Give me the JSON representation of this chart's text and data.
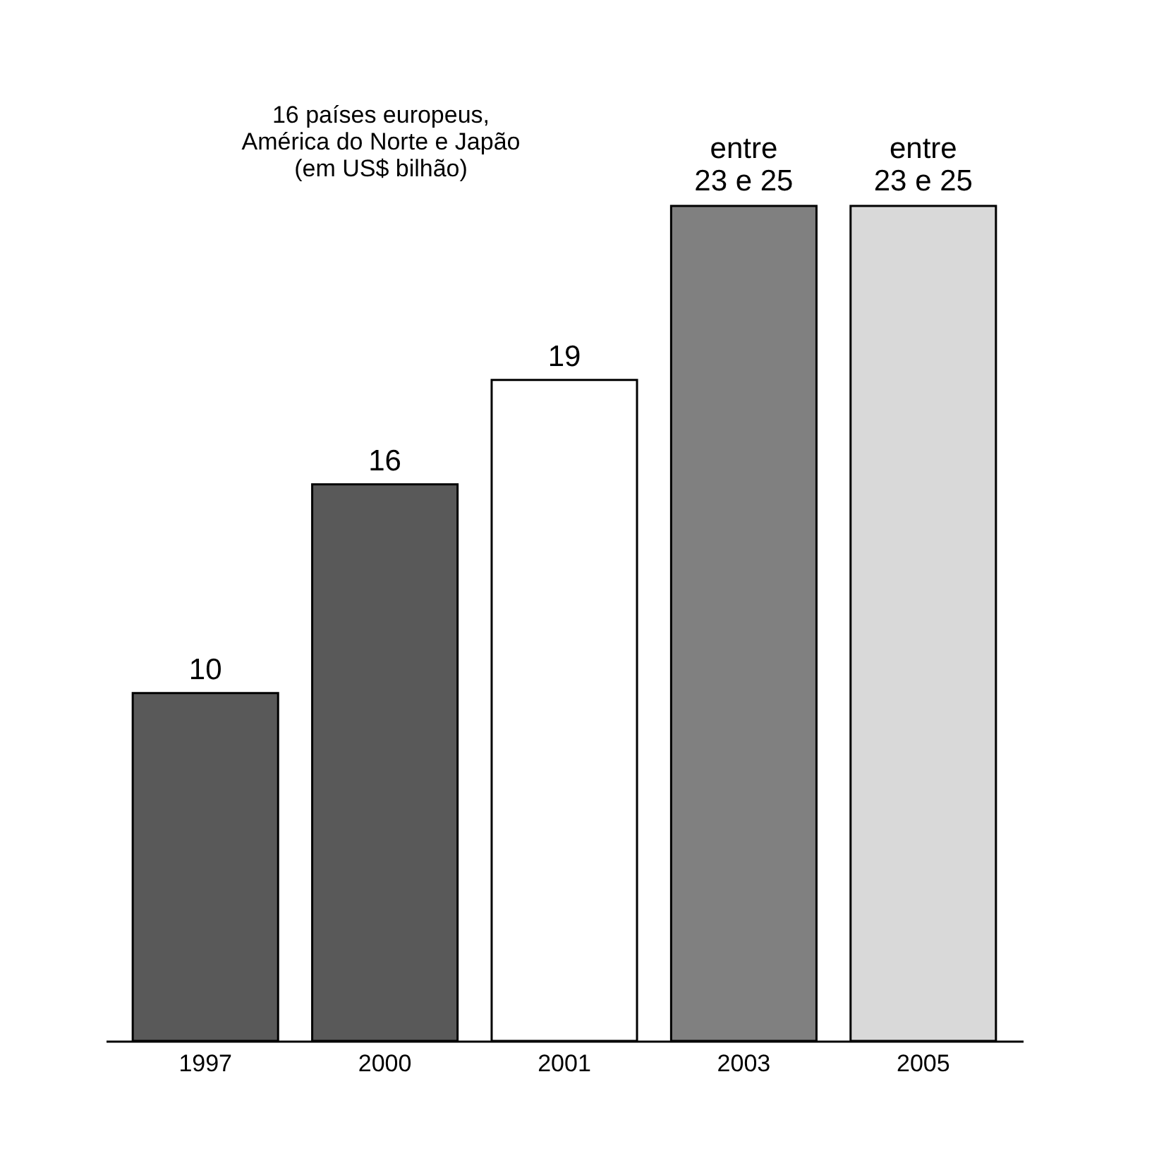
{
  "chart_data": {
    "type": "bar",
    "title": "16 países europeus,\nAmérica do Norte e Japão\n(em US$ bilhão)",
    "categories": [
      "1997",
      "2000",
      "2001",
      "2003",
      "2005"
    ],
    "values": [
      10,
      16,
      19,
      24,
      24
    ],
    "value_labels": [
      "10",
      "16",
      "19",
      "entre\n23 e 25",
      "entre\n23 e 25"
    ],
    "colors": [
      "#595959",
      "#595959",
      "#ffffff",
      "#808080",
      "#d9d9d9"
    ]
  }
}
